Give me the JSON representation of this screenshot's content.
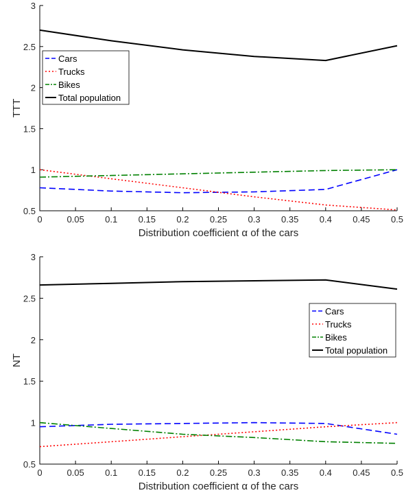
{
  "colors": {
    "Cars": "#0000FF",
    "Trucks": "#FF0000",
    "Bikes": "#008000",
    "Total population": "#000000"
  },
  "chart_data": [
    {
      "type": "line",
      "xlabel": "Distribution coefficient α of the cars",
      "ylabel": "TTT",
      "xlim": [
        0,
        0.5
      ],
      "ylim": [
        0.5,
        3
      ],
      "xticks": [
        "0",
        "0.05",
        "0.1",
        "0.15",
        "0.2",
        "0.25",
        "0.3",
        "0.35",
        "0.4",
        "0.45",
        "0.5"
      ],
      "yticks": [
        "0.5",
        "1",
        "1.5",
        "2",
        "2.5",
        "3"
      ],
      "legend_position": "top-left",
      "grid": false,
      "x": [
        0,
        0.1,
        0.2,
        0.3,
        0.4,
        0.5
      ],
      "series": [
        {
          "name": "Cars",
          "style": "dashed",
          "values": [
            0.78,
            0.74,
            0.72,
            0.73,
            0.76,
            1.0
          ]
        },
        {
          "name": "Trucks",
          "style": "dotted",
          "values": [
            1.0,
            0.89,
            0.78,
            0.67,
            0.57,
            0.51
          ]
        },
        {
          "name": "Bikes",
          "style": "dashdot",
          "values": [
            0.91,
            0.93,
            0.95,
            0.97,
            0.99,
            1.0
          ]
        },
        {
          "name": "Total population",
          "style": "solid",
          "values": [
            2.7,
            2.57,
            2.46,
            2.38,
            2.33,
            2.51
          ]
        }
      ]
    },
    {
      "type": "line",
      "xlabel": "Distribution coefficient α of the cars",
      "ylabel": "NT",
      "xlim": [
        0,
        0.5
      ],
      "ylim": [
        0.5,
        3
      ],
      "xticks": [
        "0",
        "0.05",
        "0.1",
        "0.15",
        "0.2",
        "0.25",
        "0.3",
        "0.35",
        "0.4",
        "0.45",
        "0.5"
      ],
      "yticks": [
        "0.5",
        "1",
        "1.5",
        "2",
        "2.5",
        "3"
      ],
      "legend_position": "right",
      "grid": false,
      "x": [
        0,
        0.1,
        0.2,
        0.3,
        0.4,
        0.5
      ],
      "series": [
        {
          "name": "Cars",
          "style": "dashed",
          "values": [
            0.95,
            0.98,
            0.99,
            1.0,
            0.99,
            0.86
          ]
        },
        {
          "name": "Trucks",
          "style": "dotted",
          "values": [
            0.71,
            0.77,
            0.83,
            0.89,
            0.95,
            1.0
          ]
        },
        {
          "name": "Bikes",
          "style": "dashdot",
          "values": [
            1.0,
            0.93,
            0.86,
            0.82,
            0.77,
            0.75
          ]
        },
        {
          "name": "Total population",
          "style": "solid",
          "values": [
            2.66,
            2.68,
            2.7,
            2.71,
            2.72,
            2.61
          ]
        }
      ]
    }
  ]
}
